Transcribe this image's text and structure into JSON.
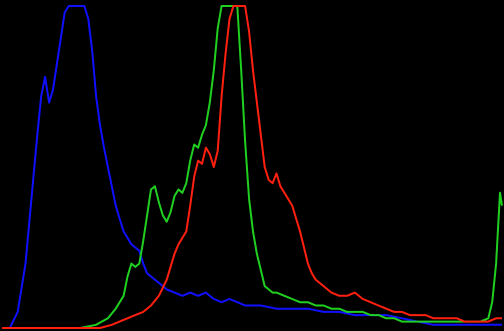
{
  "chart_data": {
    "type": "line",
    "xlim": [
      0,
      255
    ],
    "ylim": [
      0,
      1
    ],
    "grid": false,
    "legend": "none",
    "background": "#000000",
    "series": [
      {
        "color": "#1010ff",
        "points": [
          [
            0,
            0.0
          ],
          [
            4,
            0.0
          ],
          [
            8,
            0.05
          ],
          [
            12,
            0.2
          ],
          [
            15,
            0.4
          ],
          [
            18,
            0.6
          ],
          [
            20,
            0.72
          ],
          [
            22,
            0.78
          ],
          [
            24,
            0.7
          ],
          [
            26,
            0.74
          ],
          [
            28,
            0.82
          ],
          [
            30,
            0.9
          ],
          [
            32,
            0.98
          ],
          [
            34,
            1.0
          ],
          [
            36,
            1.0
          ],
          [
            38,
            1.0
          ],
          [
            40,
            1.0
          ],
          [
            42,
            1.0
          ],
          [
            44,
            0.96
          ],
          [
            46,
            0.86
          ],
          [
            48,
            0.72
          ],
          [
            50,
            0.63
          ],
          [
            52,
            0.56
          ],
          [
            54,
            0.5
          ],
          [
            56,
            0.44
          ],
          [
            58,
            0.38
          ],
          [
            60,
            0.34
          ],
          [
            62,
            0.3
          ],
          [
            64,
            0.28
          ],
          [
            66,
            0.26
          ],
          [
            68,
            0.25
          ],
          [
            70,
            0.24
          ],
          [
            72,
            0.2
          ],
          [
            74,
            0.17
          ],
          [
            76,
            0.16
          ],
          [
            78,
            0.15
          ],
          [
            80,
            0.14
          ],
          [
            84,
            0.12
          ],
          [
            88,
            0.11
          ],
          [
            92,
            0.1
          ],
          [
            96,
            0.11
          ],
          [
            100,
            0.1
          ],
          [
            104,
            0.11
          ],
          [
            108,
            0.09
          ],
          [
            112,
            0.08
          ],
          [
            116,
            0.09
          ],
          [
            120,
            0.08
          ],
          [
            124,
            0.07
          ],
          [
            128,
            0.07
          ],
          [
            132,
            0.07
          ],
          [
            140,
            0.06
          ],
          [
            148,
            0.06
          ],
          [
            156,
            0.06
          ],
          [
            164,
            0.05
          ],
          [
            172,
            0.05
          ],
          [
            180,
            0.04
          ],
          [
            188,
            0.04
          ],
          [
            196,
            0.04
          ],
          [
            204,
            0.03
          ],
          [
            212,
            0.02
          ],
          [
            220,
            0.01
          ],
          [
            228,
            0.01
          ],
          [
            236,
            0.01
          ],
          [
            244,
            0.01
          ],
          [
            250,
            0.01
          ],
          [
            255,
            0.01
          ]
        ]
      },
      {
        "color": "#20d020",
        "points": [
          [
            0,
            0.0
          ],
          [
            40,
            0.0
          ],
          [
            48,
            0.01
          ],
          [
            54,
            0.03
          ],
          [
            58,
            0.06
          ],
          [
            62,
            0.1
          ],
          [
            64,
            0.16
          ],
          [
            66,
            0.2
          ],
          [
            68,
            0.19
          ],
          [
            70,
            0.2
          ],
          [
            72,
            0.27
          ],
          [
            74,
            0.35
          ],
          [
            76,
            0.43
          ],
          [
            78,
            0.44
          ],
          [
            80,
            0.39
          ],
          [
            82,
            0.35
          ],
          [
            84,
            0.33
          ],
          [
            86,
            0.36
          ],
          [
            88,
            0.41
          ],
          [
            90,
            0.43
          ],
          [
            92,
            0.42
          ],
          [
            94,
            0.45
          ],
          [
            96,
            0.52
          ],
          [
            98,
            0.57
          ],
          [
            100,
            0.56
          ],
          [
            102,
            0.6
          ],
          [
            104,
            0.63
          ],
          [
            106,
            0.7
          ],
          [
            108,
            0.8
          ],
          [
            110,
            0.93
          ],
          [
            112,
            1.0
          ],
          [
            114,
            1.0
          ],
          [
            116,
            1.0
          ],
          [
            118,
            1.0
          ],
          [
            120,
            1.0
          ],
          [
            122,
            0.8
          ],
          [
            124,
            0.58
          ],
          [
            126,
            0.4
          ],
          [
            128,
            0.3
          ],
          [
            130,
            0.23
          ],
          [
            132,
            0.18
          ],
          [
            134,
            0.13
          ],
          [
            136,
            0.12
          ],
          [
            138,
            0.11
          ],
          [
            140,
            0.11
          ],
          [
            144,
            0.1
          ],
          [
            148,
            0.09
          ],
          [
            152,
            0.08
          ],
          [
            156,
            0.08
          ],
          [
            160,
            0.07
          ],
          [
            164,
            0.07
          ],
          [
            168,
            0.06
          ],
          [
            172,
            0.06
          ],
          [
            176,
            0.05
          ],
          [
            180,
            0.05
          ],
          [
            184,
            0.05
          ],
          [
            188,
            0.04
          ],
          [
            192,
            0.04
          ],
          [
            196,
            0.03
          ],
          [
            200,
            0.03
          ],
          [
            204,
            0.02
          ],
          [
            208,
            0.02
          ],
          [
            212,
            0.02
          ],
          [
            216,
            0.02
          ],
          [
            220,
            0.02
          ],
          [
            224,
            0.02
          ],
          [
            228,
            0.02
          ],
          [
            232,
            0.02
          ],
          [
            236,
            0.02
          ],
          [
            240,
            0.02
          ],
          [
            244,
            0.02
          ],
          [
            248,
            0.03
          ],
          [
            250,
            0.08
          ],
          [
            252,
            0.2
          ],
          [
            254,
            0.42
          ],
          [
            255,
            0.38
          ]
        ]
      },
      {
        "color": "#ff2010",
        "points": [
          [
            0,
            0.0
          ],
          [
            50,
            0.0
          ],
          [
            56,
            0.01
          ],
          [
            60,
            0.02
          ],
          [
            64,
            0.03
          ],
          [
            68,
            0.04
          ],
          [
            72,
            0.05
          ],
          [
            76,
            0.07
          ],
          [
            80,
            0.1
          ],
          [
            84,
            0.15
          ],
          [
            86,
            0.19
          ],
          [
            88,
            0.23
          ],
          [
            90,
            0.26
          ],
          [
            92,
            0.28
          ],
          [
            94,
            0.3
          ],
          [
            96,
            0.38
          ],
          [
            98,
            0.47
          ],
          [
            100,
            0.52
          ],
          [
            102,
            0.51
          ],
          [
            104,
            0.56
          ],
          [
            106,
            0.54
          ],
          [
            108,
            0.5
          ],
          [
            110,
            0.55
          ],
          [
            112,
            0.72
          ],
          [
            114,
            0.85
          ],
          [
            116,
            0.96
          ],
          [
            118,
            1.0
          ],
          [
            120,
            1.0
          ],
          [
            122,
            1.0
          ],
          [
            124,
            1.0
          ],
          [
            126,
            0.92
          ],
          [
            128,
            0.8
          ],
          [
            130,
            0.7
          ],
          [
            132,
            0.6
          ],
          [
            134,
            0.5
          ],
          [
            136,
            0.46
          ],
          [
            138,
            0.45
          ],
          [
            140,
            0.48
          ],
          [
            142,
            0.44
          ],
          [
            144,
            0.42
          ],
          [
            146,
            0.4
          ],
          [
            148,
            0.38
          ],
          [
            150,
            0.34
          ],
          [
            152,
            0.3
          ],
          [
            154,
            0.25
          ],
          [
            156,
            0.2
          ],
          [
            158,
            0.17
          ],
          [
            160,
            0.15
          ],
          [
            164,
            0.13
          ],
          [
            168,
            0.11
          ],
          [
            172,
            0.1
          ],
          [
            176,
            0.1
          ],
          [
            180,
            0.11
          ],
          [
            184,
            0.09
          ],
          [
            188,
            0.08
          ],
          [
            192,
            0.07
          ],
          [
            196,
            0.06
          ],
          [
            200,
            0.05
          ],
          [
            204,
            0.05
          ],
          [
            208,
            0.04
          ],
          [
            212,
            0.04
          ],
          [
            216,
            0.04
          ],
          [
            220,
            0.03
          ],
          [
            224,
            0.03
          ],
          [
            228,
            0.03
          ],
          [
            232,
            0.03
          ],
          [
            236,
            0.02
          ],
          [
            240,
            0.02
          ],
          [
            244,
            0.02
          ],
          [
            248,
            0.02
          ],
          [
            252,
            0.03
          ],
          [
            255,
            0.03
          ]
        ]
      }
    ]
  }
}
